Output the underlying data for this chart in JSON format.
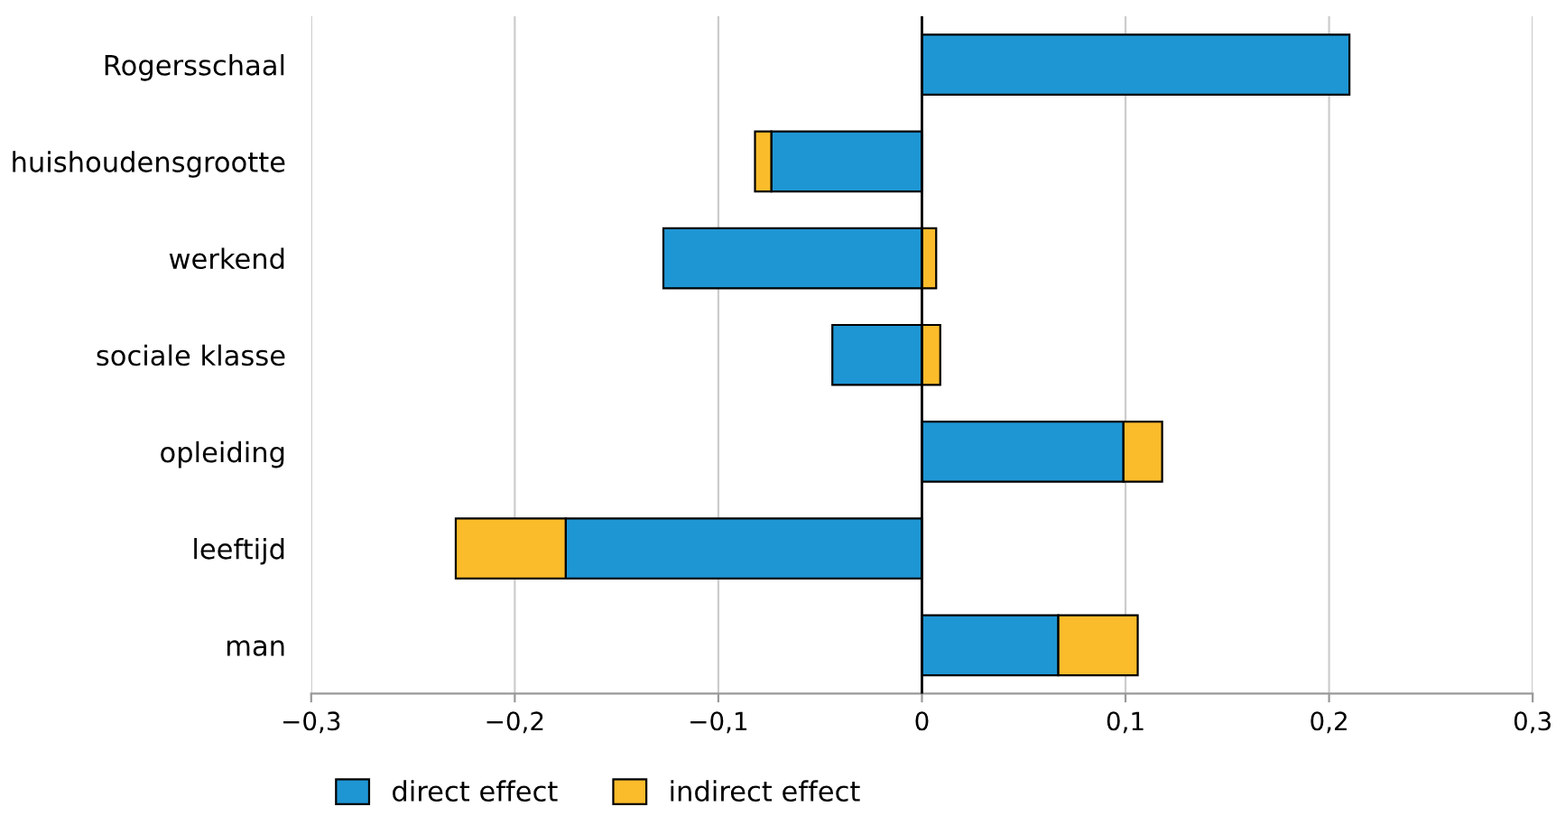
{
  "chart_data": {
    "type": "bar",
    "orientation": "horizontal",
    "stacked": true,
    "categories": [
      "Rogersschaal",
      "huishoudensgrootte",
      "werkend",
      "sociale klasse",
      "opleiding",
      "leeftijd",
      "man"
    ],
    "series": [
      {
        "name": "direct effect",
        "color": "#1f96d4",
        "values": [
          0.21,
          -0.074,
          -0.127,
          -0.044,
          0.099,
          -0.175,
          0.067
        ]
      },
      {
        "name": "indirect effect",
        "color": "#fbbc2b",
        "values": [
          null,
          -0.008,
          0.007,
          0.009,
          0.019,
          -0.054,
          0.039
        ]
      }
    ],
    "xlim": [
      -0.3,
      0.3
    ],
    "xticks": [
      {
        "value": -0.3,
        "label": "−0,3"
      },
      {
        "value": -0.2,
        "label": "−0,2"
      },
      {
        "value": -0.1,
        "label": "−0,1"
      },
      0,
      {
        "value": 0.1,
        "label": "0,1"
      },
      {
        "value": 0.2,
        "label": "0,2"
      },
      {
        "value": 0.3,
        "label": "0,3"
      }
    ],
    "ref_lines": [
      {
        "axis": "x",
        "value": 0,
        "color": "#000000"
      }
    ],
    "grid": "x",
    "legend": "bottom left"
  }
}
